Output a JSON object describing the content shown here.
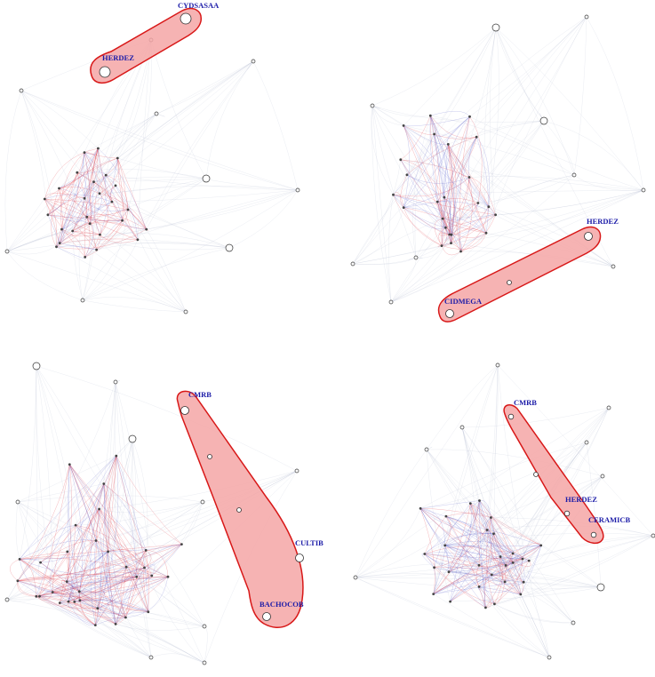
{
  "colors": {
    "red_edge": "#e0323c",
    "blue_edge": "#4a4ec8",
    "grey_edge": "#b4b8d0",
    "highlight_fill": "#f5a6a6",
    "highlight_stroke": "#d81818",
    "label": "#1c1ca8",
    "node_fill": "#ffffff",
    "node_stroke": "#333333"
  },
  "panels": [
    {
      "id": "top-left",
      "highlighted_nodes": [
        "CYDSASAA",
        "HERDEZ"
      ]
    },
    {
      "id": "top-right",
      "highlighted_nodes": [
        "HERDEZ",
        "CIDMEGA"
      ]
    },
    {
      "id": "bottom-left",
      "highlighted_nodes": [
        "CMRB",
        "CULTIB",
        "BACHOCOB"
      ]
    },
    {
      "id": "bottom-right",
      "highlighted_nodes": [
        "CMRB",
        "HERDEZ",
        "CERAMICB"
      ]
    }
  ]
}
